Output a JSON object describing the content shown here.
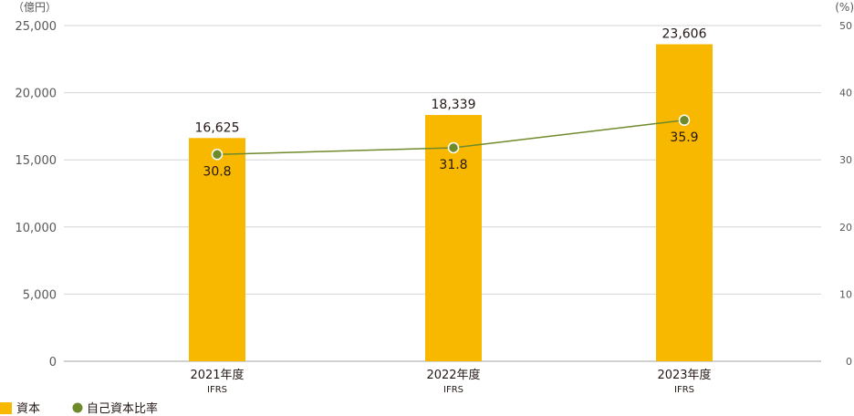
{
  "chart_data": {
    "type": "bar",
    "categories": [
      "2021年度",
      "2022年度",
      "2023年度"
    ],
    "category_sublabels": [
      "IFRS",
      "IFRS",
      "IFRS"
    ],
    "series": [
      {
        "name": "資本",
        "type": "bar",
        "axis": "left",
        "color": "#F9B800",
        "values": [
          16625,
          18339,
          23606
        ],
        "value_labels": [
          "16,625",
          "18,339",
          "23,606"
        ]
      },
      {
        "name": "自己資本比率",
        "type": "line",
        "axis": "right",
        "color": "#6E8A2B",
        "values": [
          30.8,
          31.8,
          35.9
        ],
        "value_labels": [
          "30.8",
          "31.8",
          "35.9"
        ]
      }
    ],
    "y_left": {
      "unit": "（億円）",
      "range": [
        0,
        25000
      ],
      "ticks": [
        "0",
        "5,000",
        "10,000",
        "15,000",
        "20,000",
        "25,000"
      ],
      "tick_values": [
        0,
        5000,
        10000,
        15000,
        20000,
        25000
      ]
    },
    "y_right": {
      "unit": "(%)",
      "range": [
        0,
        50
      ],
      "ticks": [
        "0",
        "10",
        "20",
        "30",
        "40",
        "50"
      ],
      "tick_values": [
        0,
        10,
        20,
        30,
        40,
        50
      ]
    },
    "grid": true,
    "legend_position": "bottom-left"
  }
}
